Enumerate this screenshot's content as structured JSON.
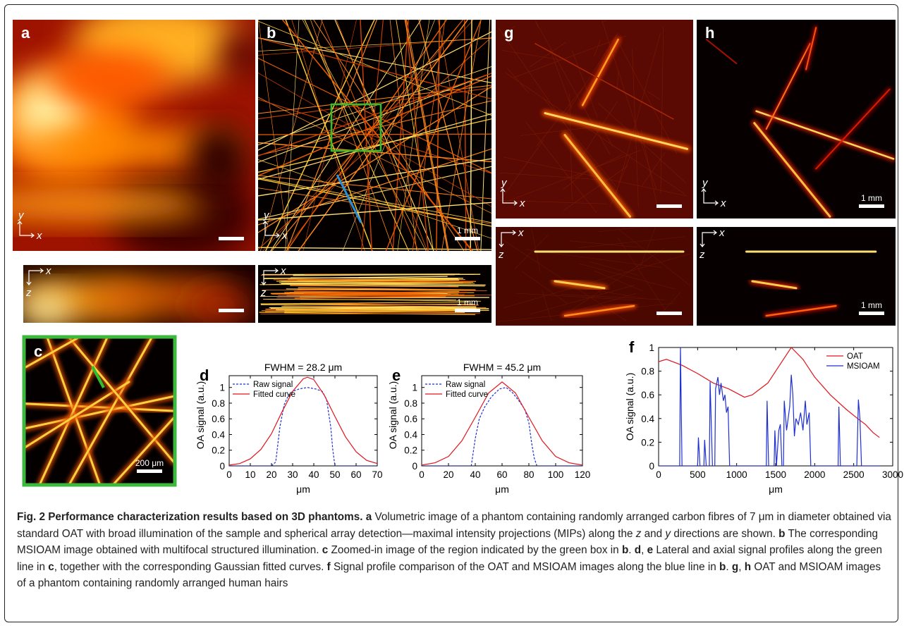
{
  "views": [
    {
      "label": "a",
      "axes": [
        "y",
        "x"
      ]
    },
    {
      "axes": [
        "x",
        "z"
      ]
    },
    {
      "label": "b",
      "axes": [
        "y",
        "x"
      ],
      "scale_bar": "1 mm"
    },
    {
      "axes": [
        "x",
        "z"
      ],
      "scale_bar": "1 mm"
    },
    {
      "label": "g",
      "axes": [
        "y",
        "x"
      ]
    },
    {
      "axes": [
        "x",
        "z"
      ]
    },
    {
      "label": "h",
      "axes": [
        "y",
        "x"
      ],
      "scale_bar": "1 mm"
    },
    {
      "axes": [
        "x",
        "z"
      ],
      "scale_bar": "1 mm"
    },
    {
      "label": "c",
      "scale_bar": "200 μm"
    }
  ],
  "chart_data": [
    {
      "type": "line",
      "label": "d",
      "title": "FWHM = 28.2 μm",
      "xlabel": "μm",
      "ylabel": "OA signal (a.u.)",
      "xlim": [
        0,
        70
      ],
      "xticks": [
        0,
        10,
        20,
        30,
        40,
        50,
        60,
        70
      ],
      "ylim": [
        0,
        1.15
      ],
      "yticks": [
        0,
        0.2,
        0.4,
        0.6,
        0.8,
        1
      ],
      "legend": "upper left",
      "series": [
        {
          "name": "Raw signal",
          "color": "#1f2fd0",
          "line_style": "dashed",
          "x": [
            0,
            20,
            22,
            24,
            26,
            28,
            30,
            33,
            37,
            41,
            44,
            46,
            48,
            49,
            50,
            70
          ],
          "values": [
            0,
            0,
            0.05,
            0.5,
            0.78,
            0.9,
            0.95,
            0.98,
            1.0,
            0.98,
            0.95,
            0.85,
            0.5,
            0.2,
            0,
            0
          ]
        },
        {
          "name": "Fitted curve",
          "color": "#e0141e",
          "line_style": "solid",
          "x": [
            0,
            5,
            10,
            15,
            20,
            25,
            30,
            35,
            37,
            40,
            45,
            50,
            55,
            60,
            65,
            70
          ],
          "values": [
            0.01,
            0.03,
            0.09,
            0.21,
            0.41,
            0.69,
            0.95,
            1.11,
            1.13,
            1.1,
            0.9,
            0.63,
            0.37,
            0.18,
            0.07,
            0.03
          ]
        }
      ]
    },
    {
      "type": "line",
      "label": "e",
      "title": "FWHM = 45.2 μm",
      "xlabel": "μm",
      "ylabel": "OA signal (a.u.)",
      "xlim": [
        0,
        120
      ],
      "xticks": [
        0,
        20,
        40,
        60,
        80,
        100,
        120
      ],
      "ylim": [
        0,
        1.15
      ],
      "yticks": [
        0,
        0.2,
        0.4,
        0.6,
        0.8,
        1
      ],
      "legend": "upper left",
      "series": [
        {
          "name": "Raw signal",
          "color": "#1f2fd0",
          "line_style": "dashed",
          "x": [
            0,
            37,
            40,
            43,
            47,
            52,
            58,
            63,
            68,
            73,
            77,
            80,
            82,
            84,
            86,
            120
          ],
          "values": [
            0,
            0,
            0.35,
            0.6,
            0.75,
            0.88,
            0.98,
            1.0,
            0.93,
            0.82,
            0.72,
            0.55,
            0.3,
            0.1,
            0,
            0
          ]
        },
        {
          "name": "Fitted curve",
          "color": "#e0141e",
          "line_style": "solid",
          "x": [
            0,
            10,
            20,
            30,
            40,
            50,
            60,
            70,
            80,
            90,
            100,
            110,
            120
          ],
          "values": [
            0.01,
            0.04,
            0.12,
            0.32,
            0.62,
            0.93,
            1.07,
            0.93,
            0.62,
            0.32,
            0.12,
            0.04,
            0.01
          ]
        }
      ]
    },
    {
      "type": "line",
      "label": "f",
      "xlabel": "μm",
      "ylabel": "OA signal (a.u.)",
      "xlim": [
        0,
        3000
      ],
      "xticks": [
        0,
        500,
        1000,
        1500,
        2000,
        2500,
        3000
      ],
      "ylim": [
        0,
        1
      ],
      "yticks": [
        0,
        0.2,
        0.4,
        0.6,
        0.8,
        1
      ],
      "legend": "upper right",
      "series": [
        {
          "name": "OAT",
          "color": "#e0141e",
          "line_style": "solid",
          "x": [
            0,
            100,
            300,
            500,
            700,
            900,
            1100,
            1200,
            1400,
            1550,
            1700,
            1850,
            2000,
            2200,
            2400,
            2550,
            2650,
            2750,
            2830
          ],
          "values": [
            0.88,
            0.9,
            0.85,
            0.78,
            0.7,
            0.65,
            0.58,
            0.6,
            0.7,
            0.85,
            1.0,
            0.9,
            0.75,
            0.6,
            0.48,
            0.4,
            0.35,
            0.28,
            0.24
          ]
        },
        {
          "name": "MSIOAM",
          "color": "#1f2fd0",
          "line_style": "solid",
          "x": [
            0,
            270,
            280,
            300,
            500,
            510,
            530,
            580,
            590,
            610,
            650,
            660,
            690,
            720,
            730,
            760,
            780,
            800,
            830,
            850,
            870,
            890,
            910,
            1380,
            1390,
            1410,
            1480,
            1490,
            1510,
            1540,
            1560,
            1580,
            1600,
            1610,
            1640,
            1680,
            1700,
            1720,
            1740,
            1760,
            1790,
            1820,
            1850,
            1880,
            1900,
            1930,
            1950,
            2300,
            2310,
            2330,
            2540,
            2560,
            2580,
            2600,
            2830
          ],
          "values": [
            0,
            0,
            1.0,
            0,
            0,
            0.24,
            0,
            0,
            0.22,
            0,
            0,
            0.71,
            0,
            0,
            0.65,
            0.75,
            0.6,
            0.7,
            0.55,
            0.6,
            0.45,
            0.5,
            0,
            0,
            0.55,
            0,
            0,
            0.3,
            0,
            0.3,
            0.35,
            0,
            0,
            0.55,
            0.3,
            0.5,
            0.77,
            0.6,
            0.25,
            0.4,
            0.35,
            0.45,
            0.3,
            0.55,
            0.35,
            0.45,
            0,
            0,
            0.5,
            0,
            0,
            0.56,
            0.4,
            0,
            0
          ]
        }
      ]
    }
  ],
  "caption": {
    "segments": [
      {
        "text": "Fig. 2 Performance characterization results based on 3D phantoms. a",
        "style": "bold"
      },
      {
        "text": " Volumetric image of a phantom containing randomly arranged carbon fibres of 7 μm in diameter obtained via standard OAT with broad illumination of the sample and spherical array detection—maximal intensity projections (MIPs) along the ",
        "style": "normal"
      },
      {
        "text": "z",
        "style": "italic"
      },
      {
        "text": " and ",
        "style": "normal"
      },
      {
        "text": "y",
        "style": "italic"
      },
      {
        "text": " directions are shown. ",
        "style": "normal"
      },
      {
        "text": "b",
        "style": "bold"
      },
      {
        "text": " The corresponding MSIOAM image obtained with multifocal structured illumination. ",
        "style": "normal"
      },
      {
        "text": "c",
        "style": "bold"
      },
      {
        "text": " Zoomed-in image of the region indicated by the green box in ",
        "style": "normal"
      },
      {
        "text": "b",
        "style": "bold"
      },
      {
        "text": ". ",
        "style": "normal"
      },
      {
        "text": "d",
        "style": "bold"
      },
      {
        "text": ", ",
        "style": "normal"
      },
      {
        "text": "e",
        "style": "bold"
      },
      {
        "text": " Lateral and axial signal profiles along the green line in ",
        "style": "normal"
      },
      {
        "text": "c",
        "style": "bold"
      },
      {
        "text": ", together with the corresponding Gaussian fitted curves. ",
        "style": "normal"
      },
      {
        "text": "f",
        "style": "bold"
      },
      {
        "text": " Signal profile comparison of the OAT and MSIOAM images along the blue line in ",
        "style": "normal"
      },
      {
        "text": "b",
        "style": "bold"
      },
      {
        "text": ". ",
        "style": "normal"
      },
      {
        "text": "g",
        "style": "bold"
      },
      {
        "text": ", ",
        "style": "normal"
      },
      {
        "text": "h",
        "style": "bold"
      },
      {
        "text": " OAT and MSIOAM images of a phantom containing randomly arranged human hairs",
        "style": "normal"
      }
    ]
  }
}
